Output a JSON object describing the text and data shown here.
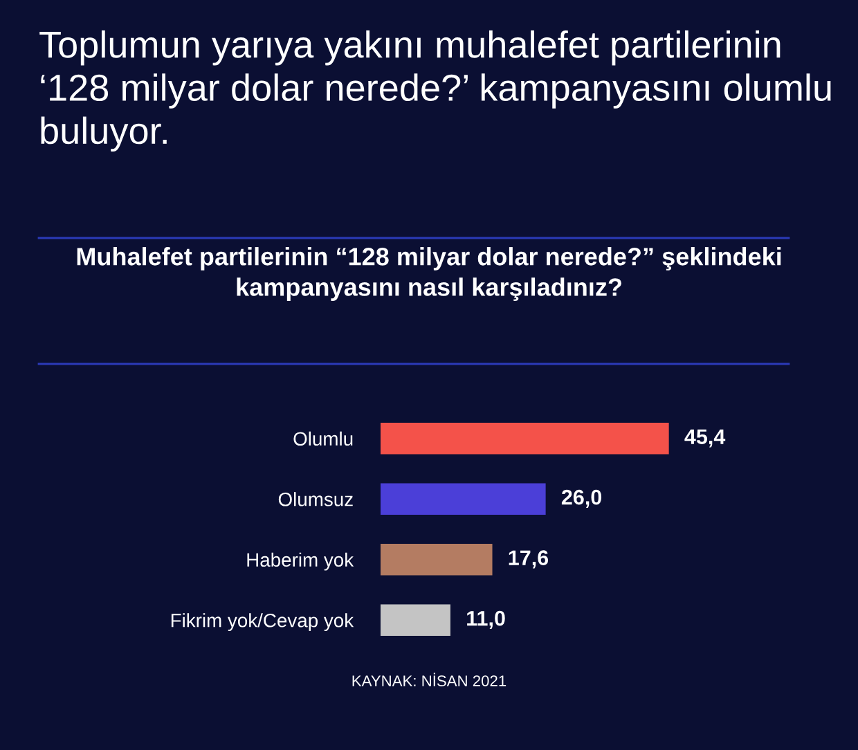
{
  "chart_data": {
    "type": "bar",
    "orientation": "horizontal",
    "title": "Toplumun yarıya yakını muhalefet partilerinin ‘128 milyar dolar nerede?’ kampanyasını olumlu buluyor.",
    "subtitle": "Muhalefet partilerinin “128 milyar dolar nerede?” şeklindeki kampanyasını nasıl karşıladınız?",
    "categories": [
      "Olumlu",
      "Olumsuz",
      "Haberim yok",
      "Fikrim yok/Cevap yok"
    ],
    "values": [
      45.4,
      26.0,
      17.6,
      11.0
    ],
    "colors": [
      "#f4524a",
      "#4b3fd8",
      "#b47c62",
      "#c4c4c4"
    ],
    "value_labels": [
      "45,4",
      "26,0",
      "17,6",
      "11,0"
    ],
    "annotations": [
      "KAYNAK: NİSAN 2021"
    ],
    "grid": false,
    "legend": false
  }
}
